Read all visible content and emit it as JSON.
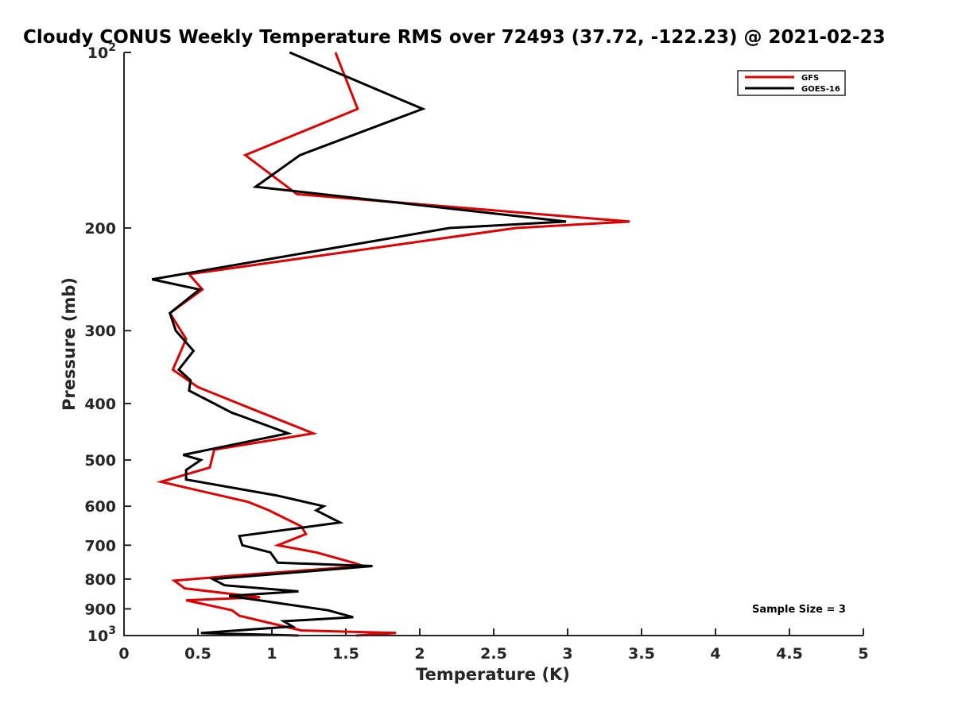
{
  "chart_data": {
    "type": "line",
    "title": "Cloudy CONUS Weekly Temperature RMS over 72493 (37.72, -122.23) @ 2021-02-23",
    "xlabel": "Temperature (K)",
    "ylabel": "Pressure (mb)",
    "xlim": [
      0,
      5
    ],
    "ylim": [
      100,
      1000
    ],
    "yscale": "log",
    "y_reversed": true,
    "x_ticks": [
      "0",
      "0.5",
      "1",
      "1.5",
      "2",
      "2.5",
      "3",
      "3.5",
      "4",
      "4.5",
      "5"
    ],
    "y_ticks": [
      {
        "value": 100,
        "base": "10",
        "exp": "2"
      },
      {
        "value": 200,
        "label": "200"
      },
      {
        "value": 300,
        "label": "300"
      },
      {
        "value": 400,
        "label": "400"
      },
      {
        "value": 500,
        "label": "500"
      },
      {
        "value": 600,
        "label": "600"
      },
      {
        "value": 700,
        "label": "700"
      },
      {
        "value": 800,
        "label": "800"
      },
      {
        "value": 900,
        "label": "900"
      },
      {
        "value": 1000,
        "base": "10",
        "exp": "3"
      }
    ],
    "legend_position": "top-right",
    "grid": false,
    "annotation": "Sample Size = 3",
    "series": [
      {
        "name": "GFS",
        "color": "#dd0000",
        "points": [
          [
            1.43,
            100
          ],
          [
            1.58,
            125
          ],
          [
            0.82,
            150
          ],
          [
            1.17,
            175
          ],
          [
            3.42,
            195
          ],
          [
            2.65,
            200
          ],
          [
            0.44,
            240
          ],
          [
            0.53,
            255
          ],
          [
            0.31,
            280
          ],
          [
            0.42,
            310
          ],
          [
            0.33,
            350
          ],
          [
            0.5,
            375
          ],
          [
            0.88,
            410
          ],
          [
            1.28,
            450
          ],
          [
            0.61,
            480
          ],
          [
            0.58,
            515
          ],
          [
            0.25,
            545
          ],
          [
            0.84,
            590
          ],
          [
            0.98,
            610
          ],
          [
            1.2,
            650
          ],
          [
            1.23,
            670
          ],
          [
            1.04,
            700
          ],
          [
            1.3,
            720
          ],
          [
            1.55,
            750
          ],
          [
            1.62,
            760
          ],
          [
            0.72,
            790
          ],
          [
            0.34,
            805
          ],
          [
            0.41,
            830
          ],
          [
            0.92,
            860
          ],
          [
            0.42,
            870
          ],
          [
            0.73,
            905
          ],
          [
            0.78,
            925
          ],
          [
            1.05,
            960
          ],
          [
            1.2,
            980
          ],
          [
            1.84,
            990
          ],
          [
            1.57,
            1000
          ]
        ]
      },
      {
        "name": "GOES-16",
        "color": "#000000",
        "points": [
          [
            1.12,
            100
          ],
          [
            2.02,
            125
          ],
          [
            1.19,
            150
          ],
          [
            0.89,
            170
          ],
          [
            2.99,
            195
          ],
          [
            2.2,
            200
          ],
          [
            0.19,
            245
          ],
          [
            0.51,
            255
          ],
          [
            0.31,
            280
          ],
          [
            0.35,
            300
          ],
          [
            0.47,
            325
          ],
          [
            0.37,
            350
          ],
          [
            0.45,
            365
          ],
          [
            0.44,
            380
          ],
          [
            0.73,
            415
          ],
          [
            0.79,
            420
          ],
          [
            1.11,
            450
          ],
          [
            0.4,
            490
          ],
          [
            0.52,
            500
          ],
          [
            0.42,
            520
          ],
          [
            0.42,
            540
          ],
          [
            1.03,
            575
          ],
          [
            1.35,
            600
          ],
          [
            1.3,
            610
          ],
          [
            1.46,
            640
          ],
          [
            0.78,
            675
          ],
          [
            0.8,
            700
          ],
          [
            0.99,
            720
          ],
          [
            1.04,
            750
          ],
          [
            1.68,
            760
          ],
          [
            0.87,
            790
          ],
          [
            0.6,
            800
          ],
          [
            0.68,
            820
          ],
          [
            1.18,
            840
          ],
          [
            0.71,
            855
          ],
          [
            1.38,
            905
          ],
          [
            1.55,
            930
          ],
          [
            1.08,
            945
          ],
          [
            1.14,
            965
          ],
          [
            0.52,
            990
          ],
          [
            1.18,
            1000
          ]
        ]
      }
    ]
  }
}
